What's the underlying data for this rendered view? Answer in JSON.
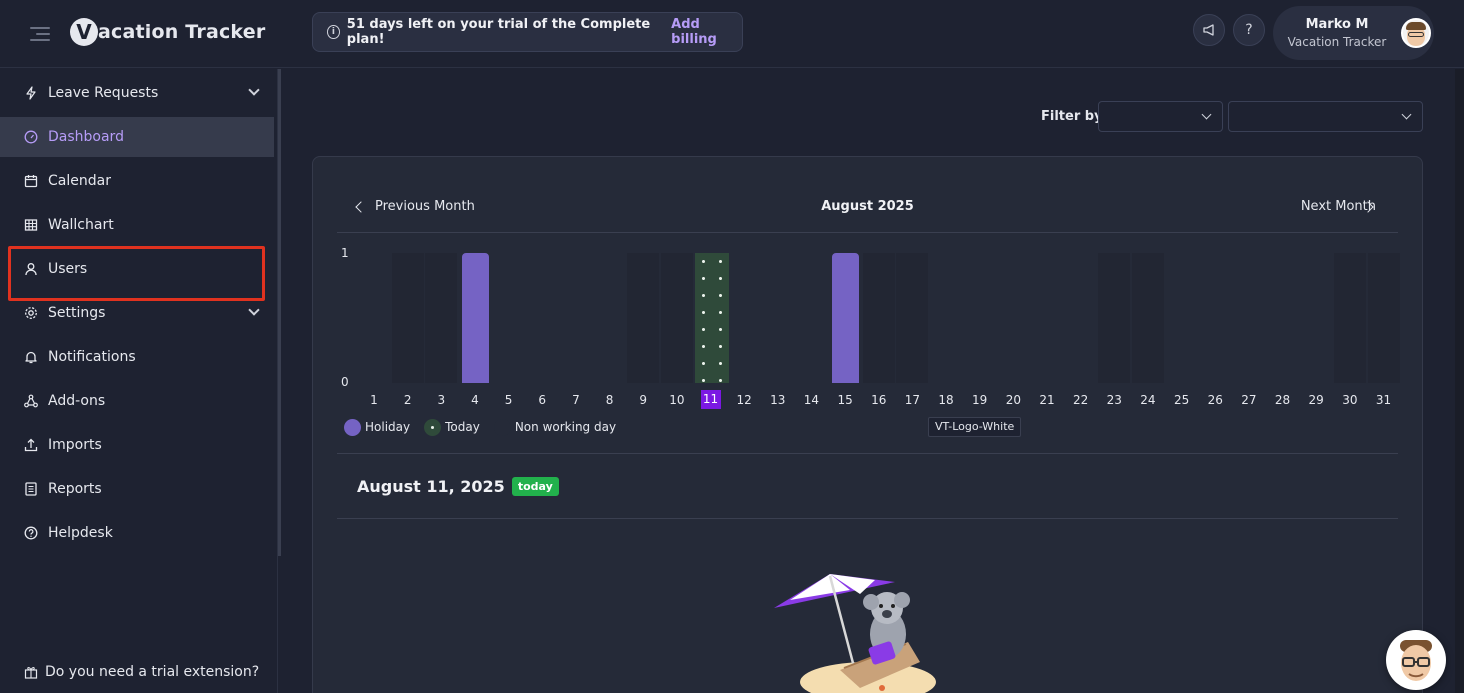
{
  "header": {
    "logo_text": "acation Tracker",
    "logo_mark": "V",
    "trial_text": "51 days left on your trial of the Complete plan!",
    "trial_link": "Add billing",
    "user_name": "Marko M",
    "user_company": "Vacation Tracker",
    "icons": [
      "menu-toggle-icon",
      "info-icon",
      "megaphone-icon",
      "help-icon"
    ]
  },
  "sidebar": {
    "items": [
      {
        "label": "Leave Requests",
        "icon": "lightning-icon",
        "expandable": true
      },
      {
        "label": "Dashboard",
        "icon": "gauge-icon",
        "active": true
      },
      {
        "label": "Calendar",
        "icon": "calendar-icon"
      },
      {
        "label": "Wallchart",
        "icon": "table-icon"
      },
      {
        "label": "Users",
        "icon": "user-icon"
      },
      {
        "label": "Settings",
        "icon": "gear-icon",
        "expandable": true
      },
      {
        "label": "Notifications",
        "icon": "bell-icon"
      },
      {
        "label": "Add-ons",
        "icon": "addons-icon"
      },
      {
        "label": "Imports",
        "icon": "upload-icon"
      },
      {
        "label": "Reports",
        "icon": "report-icon"
      },
      {
        "label": "Helpdesk",
        "icon": "help-icon"
      }
    ],
    "trial_extension": "Do you need a trial extension?"
  },
  "main": {
    "filter_label": "Filter by",
    "filter_1_value": "",
    "filter_2_value": "",
    "prev_month": "Previous Month",
    "next_month": "Next Month",
    "month_title": "August 2025",
    "selected_date": "August 11, 2025",
    "today_badge": "today",
    "tooltip": "VT-Logo-White"
  },
  "chart_data": {
    "type": "bar",
    "title": "August 2025",
    "ylim": [
      0,
      1
    ],
    "y_ticks": [
      "1",
      "0"
    ],
    "categories": [
      "1",
      "2",
      "3",
      "4",
      "5",
      "6",
      "7",
      "8",
      "9",
      "10",
      "11",
      "12",
      "13",
      "14",
      "15",
      "16",
      "17",
      "18",
      "19",
      "20",
      "21",
      "22",
      "23",
      "24",
      "25",
      "26",
      "27",
      "28",
      "29",
      "30",
      "31"
    ],
    "holiday_values": [
      0,
      0,
      0,
      1,
      0,
      0,
      0,
      0,
      0,
      0,
      0,
      0,
      0,
      0,
      1,
      0,
      0,
      0,
      0,
      0,
      0,
      0,
      0,
      0,
      0,
      0,
      0,
      0,
      0,
      0,
      0
    ],
    "today_day": 11,
    "non_working_days": [
      2,
      3,
      9,
      10,
      16,
      17,
      23,
      24,
      30,
      31
    ],
    "legend": [
      "Holiday",
      "Today",
      "Non working day"
    ],
    "colors": {
      "holiday": "#7563c4",
      "today": "#2f4a3a",
      "today_label": "#7b18e3",
      "non_working": "#222633"
    }
  }
}
